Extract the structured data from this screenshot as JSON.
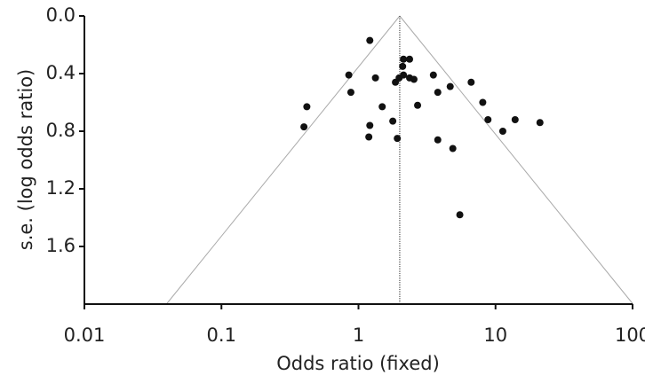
{
  "chart_data": {
    "type": "scatter",
    "x_label": "Odds ratio (fixed)",
    "y_label": "s.e. (log odds ratio)",
    "x_log": true,
    "y_inverted": true,
    "color": "#111111",
    "line_color": "#aaaaaa",
    "pooled_odds_ratio": 2,
    "funnel_z": 1.96,
    "xlim": [
      0.01,
      100
    ],
    "xticks": [
      0.01,
      0.1,
      1,
      10,
      100
    ],
    "ylim": [
      0,
      2
    ],
    "yticks": [
      {
        "value": 0,
        "label": "0.0"
      },
      0.4,
      0.8,
      1.2,
      1.6
    ],
    "x": [
      1.21,
      0.85,
      0.88,
      1.33,
      0.42,
      0.4,
      1.21,
      1.19,
      1.49,
      1.78,
      1.92,
      1.86,
      1.98,
      2.1,
      2.13,
      2.36,
      2.13,
      2.36,
      2.54,
      2.7,
      3.52,
      3.79,
      4.67,
      3.79,
      4.88,
      5.49,
      6.64,
      8.07,
      8.81,
      11.3,
      13.9,
      21.1
    ],
    "values": [
      0.17,
      0.41,
      0.53,
      0.43,
      0.63,
      0.77,
      0.76,
      0.84,
      0.63,
      0.73,
      0.85,
      0.46,
      0.43,
      0.35,
      0.3,
      0.3,
      0.41,
      0.43,
      0.44,
      0.62,
      0.41,
      0.53,
      0.49,
      0.86,
      0.92,
      1.38,
      0.46,
      0.6,
      0.72,
      0.8,
      0.72,
      0.74
    ]
  }
}
